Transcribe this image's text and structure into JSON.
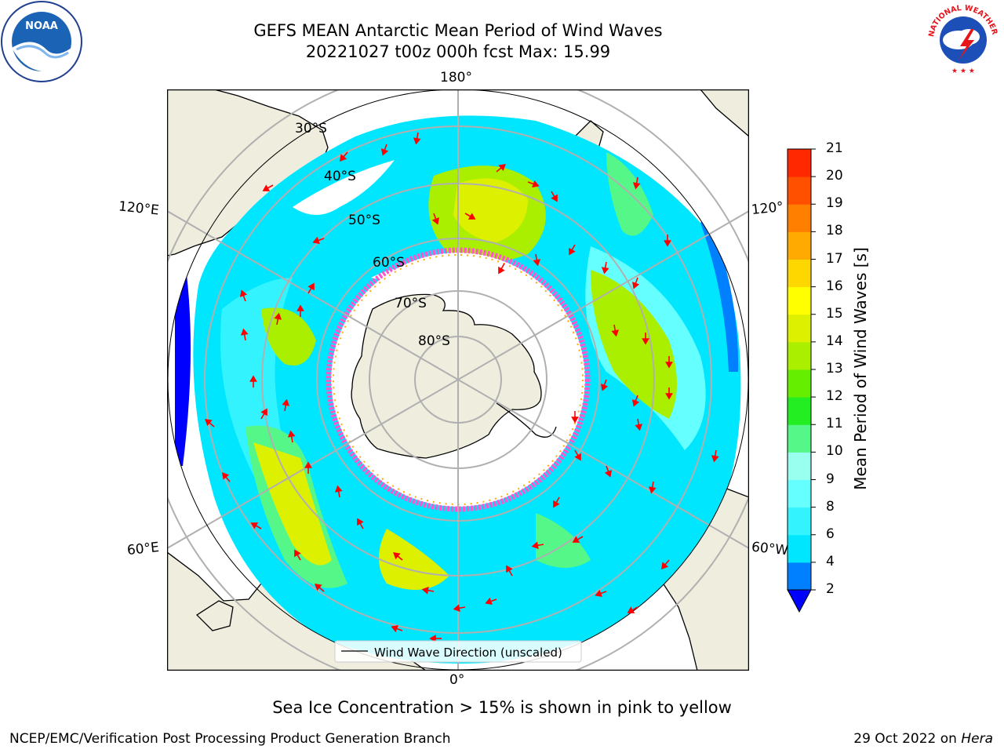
{
  "header": {
    "title_line1": "GEFS MEAN Antarctic Mean Period of Wind Waves",
    "title_line2": "20221027 t00z 000h fcst   Max: 15.99"
  },
  "map": {
    "longitude_labels": [
      "180°",
      "120°E",
      "120°",
      "60°E",
      "60°W",
      "0°"
    ],
    "latitude_labels": [
      "30°S",
      "40°S",
      "50°S",
      "60°S",
      "70°S",
      "80°S"
    ],
    "legend": "Wind Wave Direction (unscaled)",
    "colors": {
      "land": "#efedde",
      "sea_ice": "#ff55cc",
      "arrows": "#ff0000",
      "graticule": "#b0b0b0"
    }
  },
  "colorbar": {
    "label": "Mean Period of Wind Waves [s]",
    "ticks": [
      "2",
      "4",
      "6",
      "8",
      "9",
      "10",
      "11",
      "12",
      "13",
      "14",
      "15",
      "16",
      "17",
      "18",
      "19",
      "20",
      "21"
    ],
    "colors": [
      "#0000ff",
      "#0080ff",
      "#00e6ff",
      "#33f3ff",
      "#66ffff",
      "#99ffee",
      "#55f888",
      "#22ee22",
      "#66ee00",
      "#aaee00",
      "#ddf000",
      "#ffff00",
      "#ffd700",
      "#ffaa00",
      "#ff8000",
      "#ff5000",
      "#ff2800",
      "#ff0000"
    ]
  },
  "footer": {
    "sea_ice_note": "Sea Ice Concentration > 15% is shown in pink to yellow",
    "credit": "NCEP/EMC/Verification Post Processing Product Generation Branch",
    "run_date": "29 Oct 2022 on ",
    "machine": "Hera"
  },
  "logos": {
    "noaa": "NOAA",
    "nws": "NATIONAL WEATHER SERVICE"
  }
}
